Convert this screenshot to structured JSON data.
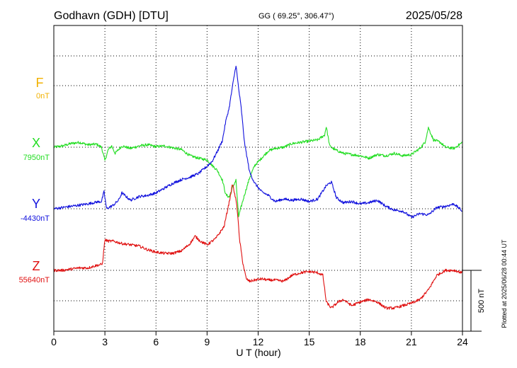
{
  "header": {
    "station": "Godhavn (GDH)  [DTU]",
    "coords": "GG ( 69.25°, 306.47°)",
    "date": "2025/05/28"
  },
  "footer": {
    "xlabel": "U T (hour)",
    "plotted": "Plotted at 2025/06/28 00:44 UT"
  },
  "colors": {
    "F": "#f2b100",
    "X": "#22dd22",
    "Y": "#1010dd",
    "Z": "#e01010",
    "axis": "#000000",
    "grid": "#000000"
  },
  "chart_data": {
    "type": "line",
    "x_unit": "hour",
    "xlim": [
      0,
      24
    ],
    "x_ticks": [
      0,
      3,
      6,
      9,
      12,
      15,
      18,
      21,
      24
    ],
    "scale_bar": "500 nT",
    "scale_bar_value_nT": 500,
    "grid": true,
    "series": [
      {
        "name": "F",
        "baseline": "0nT",
        "values": []
      },
      {
        "name": "X",
        "baseline": "7950nT",
        "x": [
          0,
          0.5,
          1,
          1.5,
          2,
          2.5,
          2.8,
          3.0,
          3.2,
          3.4,
          3.6,
          4.0,
          4.5,
          5.0,
          5.5,
          6,
          6.5,
          7,
          7.5,
          8,
          8.5,
          9,
          9.3,
          9.6,
          9.9,
          10.1,
          10.3,
          10.5,
          10.7,
          10.85,
          11.0,
          11.2,
          11.5,
          11.8,
          12.2,
          12.6,
          13,
          13.5,
          14,
          14.5,
          15,
          15.5,
          15.9,
          16.0,
          16.2,
          16.5,
          17,
          17.5,
          18,
          18.5,
          19,
          19.5,
          20,
          20.5,
          21,
          21.5,
          21.8,
          22.0,
          22.3,
          22.7,
          23,
          23.5,
          24
        ],
        "values": [
          7950,
          7960,
          7980,
          7990,
          7970,
          7975,
          7950,
          7840,
          7930,
          7960,
          7900,
          7960,
          7940,
          7960,
          7970,
          7955,
          7960,
          7945,
          7930,
          7880,
          7860,
          7845,
          7800,
          7760,
          7680,
          7560,
          7540,
          7620,
          7680,
          7380,
          7460,
          7560,
          7700,
          7800,
          7860,
          7920,
          7940,
          7950,
          7980,
          7990,
          8000,
          8010,
          8050,
          8120,
          7960,
          7930,
          7900,
          7890,
          7880,
          7860,
          7890,
          7880,
          7900,
          7880,
          7890,
          7940,
          7990,
          8110,
          8010,
          7990,
          7950,
          7940,
          7990
        ]
      },
      {
        "name": "Y",
        "baseline": "-4430nT",
        "x": [
          0,
          0.5,
          1,
          1.5,
          2,
          2.5,
          2.8,
          2.95,
          3.1,
          3.5,
          3.8,
          4.0,
          4.5,
          5,
          5.5,
          6,
          6.5,
          7,
          7.5,
          8,
          8.5,
          9,
          9.3,
          9.6,
          9.9,
          10.1,
          10.3,
          10.5,
          10.7,
          10.85,
          11.0,
          11.2,
          11.5,
          11.8,
          12.2,
          12.6,
          13,
          13.5,
          14,
          14.5,
          15,
          15.5,
          16,
          16.3,
          16.6,
          17,
          17.5,
          18,
          18.5,
          19,
          19.5,
          20,
          20.5,
          21,
          21.5,
          22,
          22.5,
          23,
          23.5,
          24
        ],
        "values": [
          -4430,
          -4420,
          -4410,
          -4400,
          -4390,
          -4375,
          -4370,
          -4290,
          -4430,
          -4400,
          -4360,
          -4300,
          -4360,
          -4330,
          -4320,
          -4300,
          -4260,
          -4220,
          -4190,
          -4170,
          -4140,
          -4080,
          -4040,
          -3960,
          -3870,
          -3710,
          -3600,
          -3420,
          -3250,
          -3440,
          -3600,
          -3890,
          -4130,
          -4220,
          -4290,
          -4320,
          -4370,
          -4350,
          -4360,
          -4350,
          -4370,
          -4350,
          -4240,
          -4210,
          -4340,
          -4380,
          -4370,
          -4390,
          -4380,
          -4360,
          -4410,
          -4440,
          -4450,
          -4500,
          -4470,
          -4480,
          -4420,
          -4410,
          -4390,
          -4450
        ]
      },
      {
        "name": "Z",
        "baseline": "55640nT",
        "x": [
          0,
          0.5,
          1,
          1.5,
          2,
          2.5,
          2.85,
          3.0,
          3.2,
          3.5,
          4,
          4.5,
          5,
          5.5,
          6,
          6.5,
          7,
          7.5,
          8,
          8.3,
          8.6,
          9,
          9.5,
          10,
          10.3,
          10.5,
          10.75,
          10.9,
          11.1,
          11.3,
          11.5,
          11.8,
          12.2,
          12.6,
          13,
          13.5,
          14,
          14.5,
          15,
          15.5,
          15.8,
          16.0,
          16.3,
          16.7,
          17,
          17.5,
          18,
          18.5,
          19,
          19.5,
          20,
          20.5,
          21,
          21.5,
          22,
          22.5,
          23,
          23.5,
          24
        ],
        "values": [
          55640,
          55640,
          55650,
          55660,
          55660,
          55680,
          55690,
          55890,
          55880,
          55880,
          55860,
          55850,
          55840,
          55810,
          55790,
          55780,
          55780,
          55800,
          55860,
          55920,
          55880,
          55850,
          55900,
          56000,
          56200,
          56350,
          56180,
          55900,
          55700,
          55570,
          55550,
          55560,
          55570,
          55560,
          55560,
          55550,
          55600,
          55620,
          55630,
          55620,
          55600,
          55380,
          55330,
          55380,
          55400,
          55350,
          55380,
          55400,
          55380,
          55330,
          55330,
          55350,
          55370,
          55400,
          55480,
          55600,
          55640,
          55640,
          55620
        ]
      }
    ]
  }
}
